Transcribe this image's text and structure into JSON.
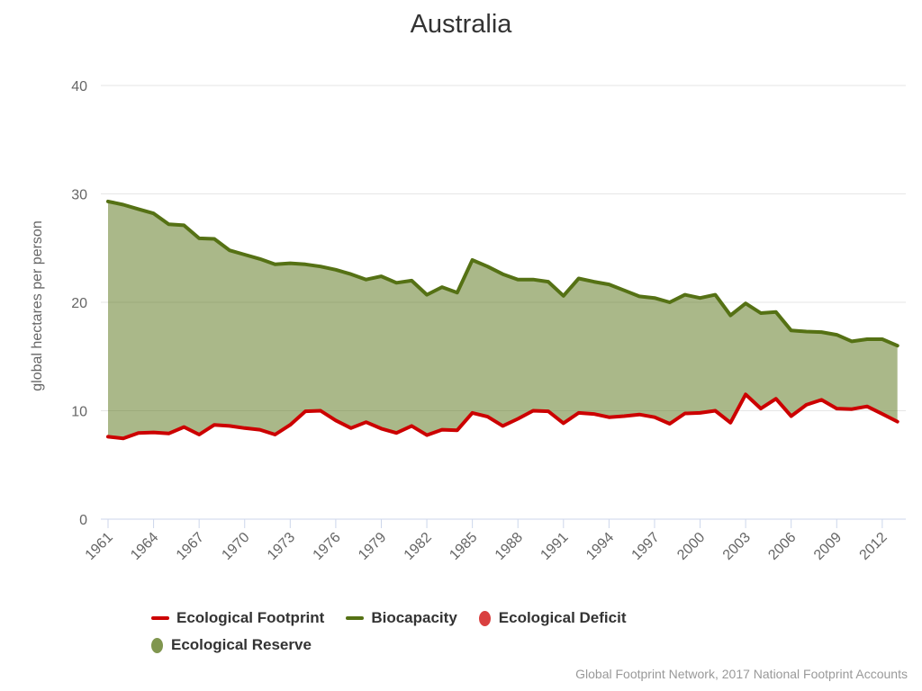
{
  "title": "Australia",
  "y_axis": {
    "title": "global hectares per person",
    "ticks": [
      0,
      10,
      20,
      30,
      40
    ]
  },
  "x_axis": {
    "tick_years": [
      1961,
      1964,
      1967,
      1970,
      1973,
      1976,
      1979,
      1982,
      1985,
      1988,
      1991,
      1994,
      1997,
      2000,
      2003,
      2006,
      2009,
      2012
    ]
  },
  "legend": {
    "items": [
      {
        "label": "Ecological Footprint",
        "symbol": "line",
        "color": "#cc0000"
      },
      {
        "label": "Biocapacity",
        "symbol": "line",
        "color": "#557114"
      },
      {
        "label": "Ecological Deficit",
        "symbol": "circle",
        "color": "#d94040"
      },
      {
        "label": "Ecological Reserve",
        "symbol": "circle",
        "color": "#80964f"
      }
    ]
  },
  "attribution": "Global Footprint Network, 2017 National Footprint Accounts",
  "colors": {
    "grid": "#e6e6e6",
    "axis": "#ccd6eb",
    "tick_label": "#666666",
    "footprint_line": "#cc0000",
    "biocapacity_line": "#557114",
    "reserve_fill": "#557114",
    "reserve_fill_opacity": 0.5
  },
  "chart_data": {
    "type": "area",
    "title": "Australia",
    "ylabel": "global hectares per person",
    "xlabel": "",
    "ylim": [
      0,
      44
    ],
    "xlim": [
      1961,
      2013
    ],
    "grid": true,
    "legend_position": "bottom",
    "x": [
      1961,
      1962,
      1963,
      1964,
      1965,
      1966,
      1967,
      1968,
      1969,
      1970,
      1971,
      1972,
      1973,
      1974,
      1975,
      1976,
      1977,
      1978,
      1979,
      1980,
      1981,
      1982,
      1983,
      1984,
      1985,
      1986,
      1987,
      1988,
      1989,
      1990,
      1991,
      1992,
      1993,
      1994,
      1995,
      1996,
      1997,
      1998,
      1999,
      2000,
      2001,
      2002,
      2003,
      2004,
      2005,
      2006,
      2007,
      2008,
      2009,
      2010,
      2011,
      2012,
      2013
    ],
    "series": [
      {
        "name": "Ecological Footprint",
        "color": "#cc0000",
        "values": [
          7.6,
          7.45,
          7.95,
          8.0,
          7.9,
          8.5,
          7.8,
          8.7,
          8.6,
          8.4,
          8.25,
          7.8,
          8.7,
          9.95,
          10.0,
          9.1,
          8.4,
          8.95,
          8.35,
          7.95,
          8.6,
          7.75,
          8.25,
          8.2,
          9.8,
          9.45,
          8.6,
          9.25,
          10.0,
          9.95,
          8.85,
          9.8,
          9.7,
          9.4,
          9.5,
          9.65,
          9.4,
          8.8,
          9.75,
          9.8,
          10.0,
          8.9,
          11.5,
          10.2,
          11.1,
          9.5,
          10.55,
          11.0,
          10.2,
          10.15,
          10.4,
          9.7,
          9.0
        ]
      },
      {
        "name": "Biocapacity",
        "color": "#557114",
        "values": [
          29.3,
          29.0,
          28.6,
          28.2,
          27.2,
          27.1,
          25.9,
          25.85,
          24.8,
          24.4,
          24.0,
          23.5,
          23.6,
          23.5,
          23.3,
          23.0,
          22.6,
          22.1,
          22.4,
          21.8,
          22.0,
          20.7,
          21.4,
          20.9,
          23.9,
          23.3,
          22.6,
          22.1,
          22.1,
          21.9,
          20.6,
          22.2,
          21.9,
          21.65,
          21.1,
          20.55,
          20.4,
          20.0,
          20.7,
          20.4,
          20.7,
          18.8,
          19.9,
          19.0,
          19.1,
          17.4,
          17.3,
          17.25,
          17.0,
          16.4,
          16.6,
          16.6,
          16.0
        ]
      }
    ],
    "fill_between": {
      "name": "Ecological Reserve",
      "between": [
        "Biocapacity",
        "Ecological Footprint"
      ],
      "color": "#557114",
      "opacity": 0.5
    }
  }
}
